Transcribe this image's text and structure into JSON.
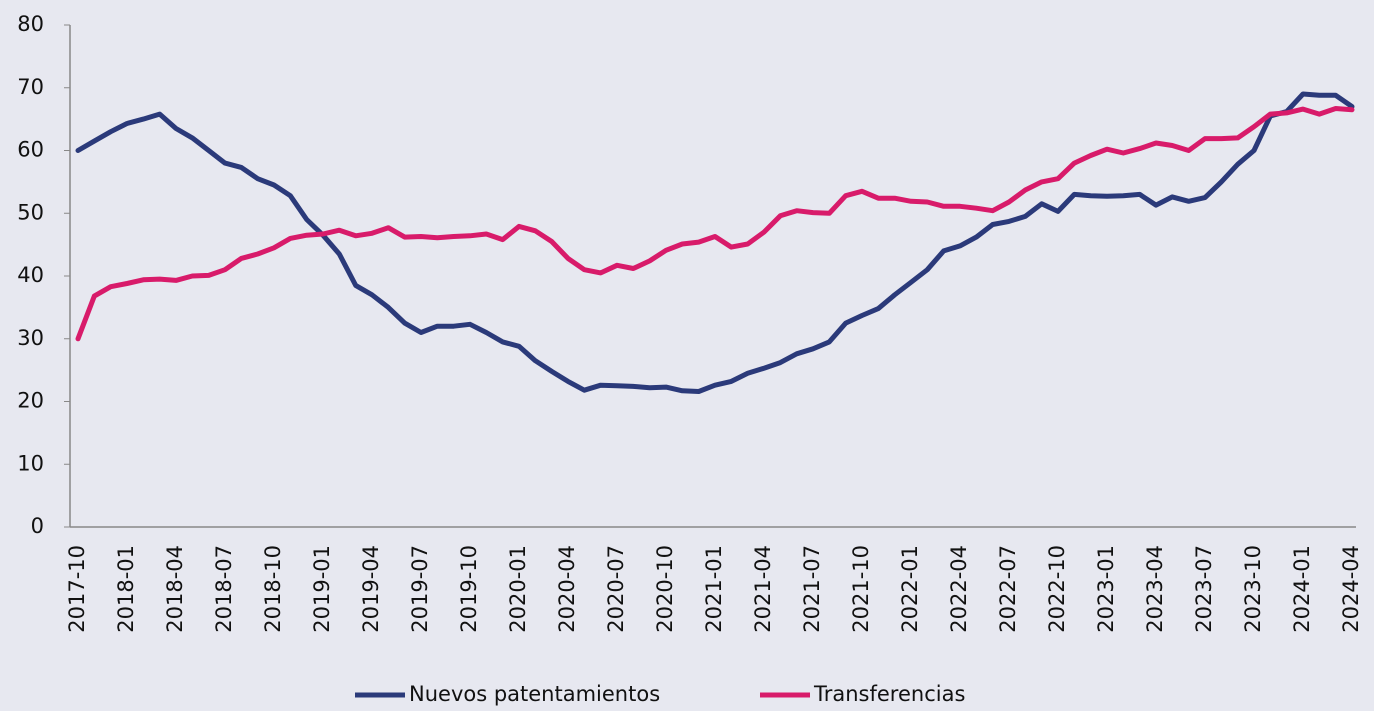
{
  "chart_data": {
    "type": "line",
    "categories": [
      "2017-10",
      null,
      null,
      "2018-01",
      null,
      null,
      "2018-04",
      null,
      null,
      "2018-07",
      null,
      null,
      "2018-10",
      null,
      null,
      "2019-01",
      null,
      null,
      "2019-04",
      null,
      null,
      "2019-07",
      null,
      null,
      "2019-10",
      null,
      null,
      "2020-01",
      null,
      null,
      "2020-04",
      null,
      null,
      "2020-07",
      null,
      null,
      "2020-10",
      null,
      null,
      "2021-01",
      null,
      null,
      "2021-04",
      null,
      null,
      "2021-07",
      null,
      null,
      "2021-10",
      null,
      null,
      "2022-01",
      null,
      null,
      "2022-04",
      null,
      null,
      "2022-07",
      null,
      null,
      "2022-10",
      null,
      null,
      "2023-01",
      null,
      null,
      "2023-04",
      null,
      null,
      "2023-07",
      null,
      null,
      "2023-10",
      null,
      null,
      "2024-01",
      null,
      null,
      "2024-04"
    ],
    "series": [
      {
        "name": "Nuevos patentamientos",
        "color": "#2b3a7a",
        "values": [
          60,
          61.5,
          63,
          64.3,
          65,
          65.8,
          63.5,
          62,
          60,
          58,
          57.3,
          55.5,
          54.5,
          52.8,
          49,
          46.5,
          43.5,
          38.5,
          37,
          35,
          32.5,
          31,
          32,
          32,
          32.3,
          31,
          29.5,
          28.8,
          26.5,
          24.8,
          23.2,
          21.8,
          22.6,
          22.5,
          22.4,
          22.2,
          22.3,
          21.7,
          21.6,
          22.6,
          23.2,
          24.5,
          25.3,
          26.2,
          27.6,
          28.4,
          29.5,
          32.5,
          33.7,
          34.8,
          37,
          39,
          41,
          44,
          44.8,
          46.2,
          48.2,
          48.7,
          49.5,
          51.5,
          50.3,
          53,
          52.8,
          52.7,
          52.8,
          53,
          51.3,
          52.6,
          51.9,
          52.5,
          55,
          57.8,
          60,
          65.5,
          66.2,
          69,
          68.8,
          68.8,
          67
        ]
      },
      {
        "name": "Transferencias",
        "color": "#d81b6a",
        "values": [
          30,
          36.8,
          38.3,
          38.8,
          39.4,
          39.5,
          39.3,
          40,
          40.1,
          41,
          42.8,
          43.5,
          44.5,
          46,
          46.5,
          46.7,
          47.3,
          46.4,
          46.8,
          47.7,
          46.2,
          46.3,
          46.1,
          46.3,
          46.4,
          46.7,
          45.8,
          47.9,
          47.2,
          45.5,
          42.8,
          41,
          40.5,
          41.7,
          41.2,
          42.4,
          44.1,
          45.1,
          45.4,
          46.3,
          44.6,
          45.1,
          47,
          49.6,
          50.4,
          50.1,
          50,
          52.8,
          53.5,
          52.4,
          52.4,
          51.9,
          51.8,
          51.1,
          51.1,
          50.8,
          50.4,
          51.8,
          53.7,
          55,
          55.5,
          58,
          59.2,
          60.2,
          59.6,
          60.3,
          61.2,
          60.8,
          60,
          61.9,
          61.9,
          62,
          63.8,
          65.8,
          66,
          66.6,
          65.8,
          66.7,
          66.5
        ]
      }
    ],
    "ylim": [
      0,
      80
    ],
    "yticks": [
      0,
      10,
      20,
      30,
      40,
      50,
      60,
      70,
      80
    ],
    "grid": false,
    "legend": "bottom"
  }
}
